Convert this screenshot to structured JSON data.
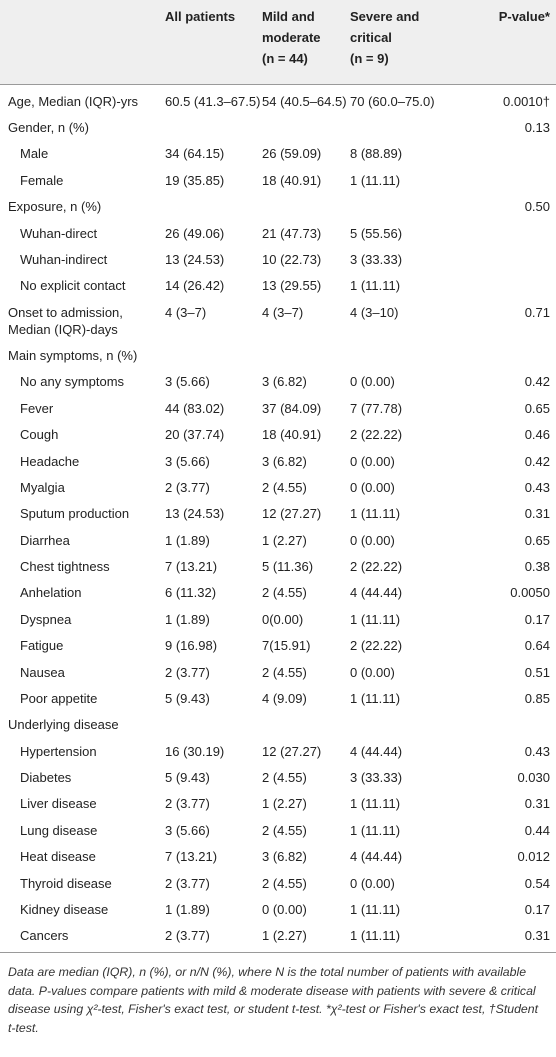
{
  "table": {
    "header": [
      {
        "lines": [
          "All patients"
        ]
      },
      {
        "lines": [
          "Mild and",
          "moderate",
          "(n = 44)"
        ]
      },
      {
        "lines": [
          "Severe and",
          "critical",
          "(n = 9)"
        ]
      },
      {
        "lines": [
          "P-value*"
        ]
      }
    ],
    "rows": [
      {
        "label": "Age, Median (IQR)-yrs",
        "cells": [
          "60.5 (41.3–67.5)",
          "54 (40.5–64.5)",
          "70 (60.0–75.0)"
        ],
        "p": "0.0010†"
      },
      {
        "label": "Gender, n (%)",
        "p": "0.13",
        "rows": [
          {
            "label": "Male",
            "cells": [
              "34 (64.15)",
              "26 (59.09)",
              "8 (88.89)"
            ]
          },
          {
            "label": "Female",
            "cells": [
              "19 (35.85)",
              "18 (40.91)",
              "1 (11.11)"
            ]
          }
        ]
      },
      {
        "label": "Exposure, n (%)",
        "p": "0.50",
        "rows": [
          {
            "label": "Wuhan-direct",
            "cells": [
              "26 (49.06)",
              "21 (47.73)",
              "5 (55.56)"
            ]
          },
          {
            "label": "Wuhan-indirect",
            "cells": [
              "13 (24.53)",
              "10 (22.73)",
              "3 (33.33)"
            ]
          },
          {
            "label": "No explicit contact",
            "cells": [
              "14 (26.42)",
              "13 (29.55)",
              "1 (11.11)"
            ]
          }
        ]
      },
      {
        "label": "Onset to admission, Median (IQR)-days",
        "cells": [
          "4 (3–7)",
          "4 (3–7)",
          "4 (3–10)"
        ],
        "p": "0.71"
      },
      {
        "label": "Main symptoms, n (%)",
        "rows": [
          {
            "label": "No any symptoms",
            "cells": [
              "3 (5.66)",
              "3 (6.82)",
              "0 (0.00)"
            ],
            "p": "0.42"
          },
          {
            "label": "Fever",
            "cells": [
              "44 (83.02)",
              "37 (84.09)",
              "7 (77.78)"
            ],
            "p": "0.65"
          },
          {
            "label": "Cough",
            "cells": [
              "20 (37.74)",
              "18 (40.91)",
              "2 (22.22)"
            ],
            "p": "0.46"
          },
          {
            "label": "Headache",
            "cells": [
              "3 (5.66)",
              "3 (6.82)",
              "0 (0.00)"
            ],
            "p": "0.42"
          },
          {
            "label": "Myalgia",
            "cells": [
              "2 (3.77)",
              "2 (4.55)",
              "0 (0.00)"
            ],
            "p": "0.43"
          },
          {
            "label": "Sputum production",
            "cells": [
              "13 (24.53)",
              "12 (27.27)",
              "1 (11.11)"
            ],
            "p": "0.31"
          },
          {
            "label": "Diarrhea",
            "cells": [
              "1 (1.89)",
              "1 (2.27)",
              "0 (0.00)"
            ],
            "p": "0.65"
          },
          {
            "label": "Chest tightness",
            "cells": [
              "7 (13.21)",
              "5 (11.36)",
              "2 (22.22)"
            ],
            "p": "0.38"
          },
          {
            "label": "Anhelation",
            "cells": [
              "6 (11.32)",
              "2 (4.55)",
              "4 (44.44)"
            ],
            "p": "0.0050"
          },
          {
            "label": "Dyspnea",
            "cells": [
              "1 (1.89)",
              "0(0.00)",
              "1 (11.11)"
            ],
            "p": "0.17"
          },
          {
            "label": "Fatigue",
            "cells": [
              "9 (16.98)",
              "7(15.91)",
              "2 (22.22)"
            ],
            "p": "0.64"
          },
          {
            "label": "Nausea",
            "cells": [
              "2 (3.77)",
              "2 (4.55)",
              "0 (0.00)"
            ],
            "p": "0.51"
          },
          {
            "label": "Poor appetite",
            "cells": [
              "5 (9.43)",
              "4 (9.09)",
              "1 (11.11)"
            ],
            "p": "0.85"
          }
        ]
      },
      {
        "label": "Underlying disease",
        "rows": [
          {
            "label": "Hypertension",
            "cells": [
              "16 (30.19)",
              "12 (27.27)",
              "4 (44.44)"
            ],
            "p": "0.43"
          },
          {
            "label": "Diabetes",
            "cells": [
              "5 (9.43)",
              "2 (4.55)",
              "3 (33.33)"
            ],
            "p": "0.030"
          },
          {
            "label": "Liver disease",
            "cells": [
              "2 (3.77)",
              "1 (2.27)",
              "1 (11.11)"
            ],
            "p": "0.31"
          },
          {
            "label": "Lung disease",
            "cells": [
              "3 (5.66)",
              "2 (4.55)",
              "1 (11.11)"
            ],
            "p": "0.44"
          },
          {
            "label": "Heat disease",
            "cells": [
              "7 (13.21)",
              "3 (6.82)",
              "4 (44.44)"
            ],
            "p": "0.012"
          },
          {
            "label": "Thyroid disease",
            "cells": [
              "2 (3.77)",
              "2 (4.55)",
              "0 (0.00)"
            ],
            "p": "0.54"
          },
          {
            "label": "Kidney disease",
            "cells": [
              "1 (1.89)",
              "0 (0.00)",
              "1 (11.11)"
            ],
            "p": "0.17"
          },
          {
            "label": "Cancers",
            "cells": [
              "2 (3.77)",
              "1 (2.27)",
              "1 (11.11)"
            ],
            "p": "0.31"
          }
        ]
      }
    ]
  },
  "footnote": "Data are median (IQR), n (%), or n/N (%), where N is the total number of patients with available data. P-values compare patients with mild & moderate disease with patients with severe & critical disease using χ²-test, Fisher's exact test, or student t-test. *χ²-test or Fisher's exact test, †Student t-test."
}
